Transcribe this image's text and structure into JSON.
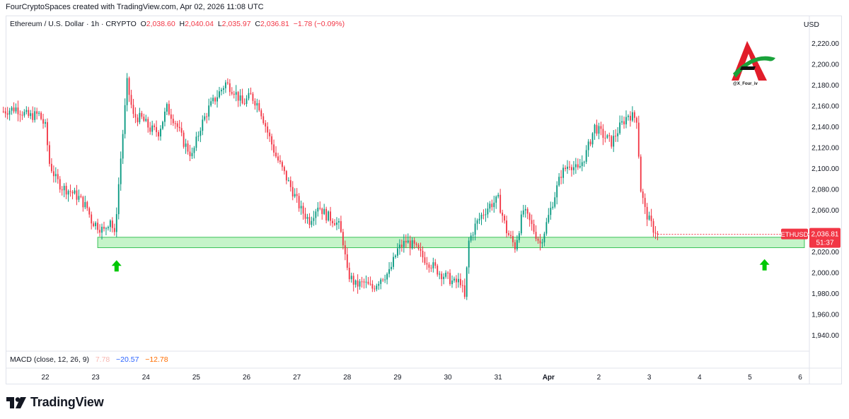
{
  "attribution": "FourCryptoSpaces created with TradingView.com, Apr 02, 2026 11:08 UTC",
  "legend": {
    "symbol": "Ethereum / U.S. Dollar · 1h · CRYPTO",
    "o_label": "O",
    "o_value": "2,038.60",
    "h_label": "H",
    "h_value": "2,040.04",
    "l_label": "L",
    "l_value": "2,035.97",
    "c_label": "C",
    "c_value": "2,036.81",
    "change": "−1.78 (−0.09%)"
  },
  "currency": "USD",
  "macd": {
    "label": "MACD (close, 12, 26, 9)",
    "macd": "7.78",
    "signal": "−20.57",
    "hist": "−12.78"
  },
  "price_tag": {
    "symbol": "ETHUSD",
    "price": "2,036.81",
    "countdown": "51:37"
  },
  "watermark_text": "@X_Four_iv",
  "brand": "TradingView",
  "colors": {
    "up": "#089981",
    "down": "#f23645",
    "zone": "#7ee787",
    "arrow": "#00c805"
  },
  "chart_data": {
    "type": "candlestick",
    "title": "Ethereum / U.S. Dollar · 1h · CRYPTO",
    "y_axis": {
      "ylim": [
        1928,
        2232
      ],
      "ticks": [
        1940,
        1960,
        1980,
        2000,
        2020,
        2040,
        2060,
        2080,
        2100,
        2120,
        2140,
        2160,
        2180,
        2200,
        2220
      ],
      "tick_labels": [
        "1,940.00",
        "1,960.00",
        "1,980.00",
        "2,000.00",
        "2,020.00",
        "2,040.00",
        "2,060.00",
        "2,080.00",
        "2,100.00",
        "2,120.00",
        "2,140.00",
        "2,160.00",
        "2,180.00",
        "2,200.00",
        "2,220.00"
      ]
    },
    "x_axis": {
      "labels": [
        "22",
        "23",
        "24",
        "25",
        "26",
        "27",
        "28",
        "29",
        "30",
        "31",
        "Apr",
        "2",
        "3",
        "4",
        "5",
        "6"
      ],
      "day_start_hours": [
        0,
        24,
        48,
        72,
        96,
        120,
        144,
        168,
        192,
        216,
        240,
        264,
        288,
        312,
        336,
        360
      ]
    },
    "hours_start": -20,
    "path": [
      [
        -20,
        2155
      ],
      [
        -14,
        2158
      ],
      [
        -8,
        2150
      ],
      [
        -3,
        2152
      ],
      [
        0,
        2140
      ],
      [
        2,
        2105
      ],
      [
        5,
        2090
      ],
      [
        8,
        2082
      ],
      [
        12,
        2078
      ],
      [
        16,
        2072
      ],
      [
        20,
        2062
      ],
      [
        22,
        2050
      ],
      [
        25,
        2045
      ],
      [
        28,
        2040
      ],
      [
        31,
        2052
      ],
      [
        33,
        2035
      ],
      [
        36,
        2110
      ],
      [
        39,
        2182
      ],
      [
        42,
        2150
      ],
      [
        46,
        2148
      ],
      [
        50,
        2138
      ],
      [
        54,
        2135
      ],
      [
        58,
        2158
      ],
      [
        62,
        2145
      ],
      [
        66,
        2125
      ],
      [
        70,
        2112
      ],
      [
        74,
        2140
      ],
      [
        78,
        2158
      ],
      [
        82,
        2170
      ],
      [
        86,
        2182
      ],
      [
        90,
        2175
      ],
      [
        94,
        2162
      ],
      [
        98,
        2170
      ],
      [
        102,
        2160
      ],
      [
        106,
        2135
      ],
      [
        110,
        2112
      ],
      [
        114,
        2095
      ],
      [
        118,
        2078
      ],
      [
        122,
        2060
      ],
      [
        126,
        2050
      ],
      [
        130,
        2065
      ],
      [
        134,
        2055
      ],
      [
        138,
        2050
      ],
      [
        140,
        2045
      ],
      [
        142,
        2030
      ],
      [
        144,
        2000
      ],
      [
        148,
        1988
      ],
      [
        152,
        1990
      ],
      [
        156,
        1985
      ],
      [
        160,
        1995
      ],
      [
        164,
        2000
      ],
      [
        168,
        2022
      ],
      [
        172,
        2030
      ],
      [
        176,
        2025
      ],
      [
        180,
        2015
      ],
      [
        184,
        2008
      ],
      [
        188,
        2000
      ],
      [
        192,
        1995
      ],
      [
        195,
        1990
      ],
      [
        198,
        1992
      ],
      [
        200,
        1975
      ],
      [
        202,
        2030
      ],
      [
        205,
        2045
      ],
      [
        208,
        2055
      ],
      [
        212,
        2065
      ],
      [
        216,
        2070
      ],
      [
        220,
        2040
      ],
      [
        224,
        2025
      ],
      [
        228,
        2060
      ],
      [
        232,
        2045
      ],
      [
        236,
        2028
      ],
      [
        238,
        2040
      ],
      [
        242,
        2068
      ],
      [
        246,
        2095
      ],
      [
        250,
        2105
      ],
      [
        254,
        2098
      ],
      [
        258,
        2115
      ],
      [
        262,
        2140
      ],
      [
        266,
        2132
      ],
      [
        270,
        2125
      ],
      [
        274,
        2140
      ],
      [
        278,
        2152
      ],
      [
        282,
        2148
      ],
      [
        284,
        2080
      ],
      [
        286,
        2060
      ],
      [
        288,
        2050
      ],
      [
        290,
        2042
      ],
      [
        292,
        2038
      ]
    ],
    "annotations": [
      {
        "type": "support_zone",
        "x_start_hour": 25,
        "x_end_hour": 362,
        "y_low": 2024,
        "y_high": 2034
      },
      {
        "type": "arrow_up",
        "hour": 34,
        "y": 2012
      },
      {
        "type": "arrow_up",
        "hour": 343,
        "y": 2013
      }
    ],
    "last_price": 2036.81
  }
}
